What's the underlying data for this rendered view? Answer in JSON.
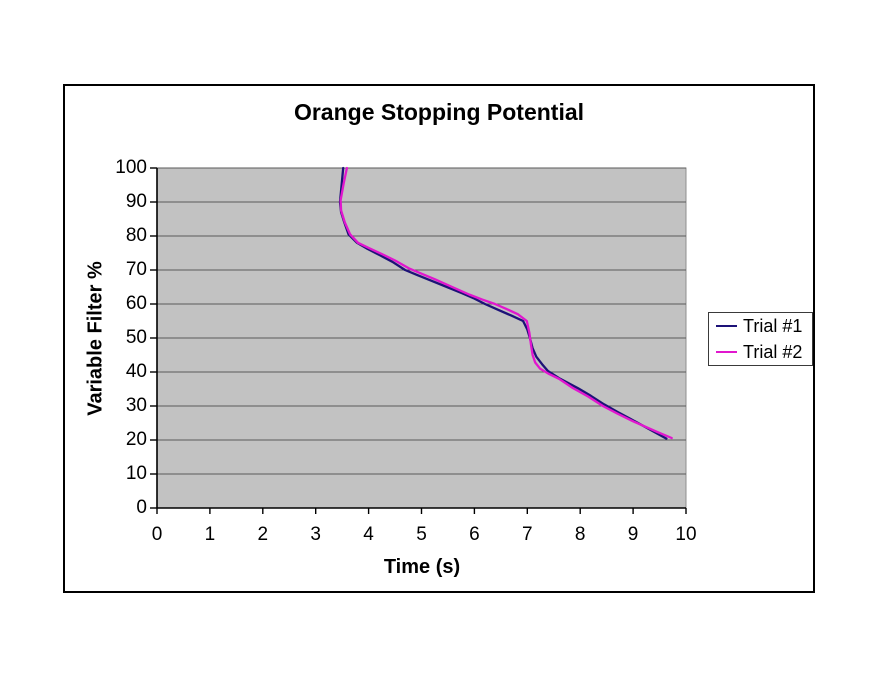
{
  "chart_data": {
    "type": "line",
    "title": "Orange Stopping Potential",
    "xlabel": "Time (s)",
    "ylabel": "Variable Filter %",
    "xlim": [
      0,
      10
    ],
    "ylim": [
      0,
      100
    ],
    "x_ticks": [
      0,
      1,
      2,
      3,
      4,
      5,
      6,
      7,
      8,
      9,
      10
    ],
    "y_ticks": [
      0,
      10,
      20,
      30,
      40,
      50,
      60,
      70,
      80,
      90,
      100
    ],
    "grid": "horizontal",
    "legend_position": "right-inside",
    "plot_bg_color": "#c2c2c2",
    "gridline_color": "#5a5a5a",
    "plot_border_color": "#8f8f8f",
    "axis_color": "#000000",
    "frame_border_color": "#000000",
    "series": [
      {
        "name": "Trial #1",
        "color": "#1d1278",
        "points": [
          [
            3.52,
            100
          ],
          [
            3.49,
            95
          ],
          [
            3.46,
            90
          ],
          [
            3.48,
            87
          ],
          [
            3.54,
            84
          ],
          [
            3.62,
            80.5
          ],
          [
            3.78,
            78
          ],
          [
            3.98,
            76.2
          ],
          [
            4.22,
            74.3
          ],
          [
            4.45,
            72.4
          ],
          [
            4.69,
            70
          ],
          [
            4.92,
            68.5
          ],
          [
            5.16,
            67
          ],
          [
            5.48,
            65
          ],
          [
            5.76,
            63.2
          ],
          [
            6.0,
            61.6
          ],
          [
            6.2,
            60
          ],
          [
            6.46,
            58.2
          ],
          [
            6.7,
            56.6
          ],
          [
            6.92,
            55
          ],
          [
            7.0,
            52.5
          ],
          [
            7.05,
            50
          ],
          [
            7.1,
            47
          ],
          [
            7.17,
            44.5
          ],
          [
            7.28,
            42.3
          ],
          [
            7.39,
            40.3
          ],
          [
            7.6,
            38.2
          ],
          [
            7.96,
            35.2
          ],
          [
            8.2,
            33
          ],
          [
            8.45,
            30.5
          ],
          [
            8.7,
            28.3
          ],
          [
            8.95,
            26.2
          ],
          [
            9.35,
            22.8
          ],
          [
            9.63,
            20.4
          ]
        ]
      },
      {
        "name": "Trial #2",
        "color": "#e117ce",
        "points": [
          [
            3.59,
            100
          ],
          [
            3.53,
            95.5
          ],
          [
            3.47,
            90.5
          ],
          [
            3.48,
            87.5
          ],
          [
            3.55,
            84
          ],
          [
            3.65,
            80.5
          ],
          [
            3.8,
            78
          ],
          [
            4.0,
            76.5
          ],
          [
            4.25,
            74.7
          ],
          [
            4.5,
            72.8
          ],
          [
            4.76,
            70.5
          ],
          [
            5.0,
            68.9
          ],
          [
            5.25,
            67.3
          ],
          [
            5.58,
            65
          ],
          [
            5.9,
            62.8
          ],
          [
            6.15,
            61.3
          ],
          [
            6.39,
            60
          ],
          [
            6.6,
            58.6
          ],
          [
            6.82,
            57
          ],
          [
            6.99,
            55
          ],
          [
            7.04,
            51.5
          ],
          [
            7.07,
            48
          ],
          [
            7.1,
            45
          ],
          [
            7.15,
            42.8
          ],
          [
            7.24,
            41
          ],
          [
            7.4,
            39.5
          ],
          [
            7.6,
            38
          ],
          [
            7.86,
            35.3
          ],
          [
            8.15,
            32.8
          ],
          [
            8.43,
            30
          ],
          [
            8.7,
            27.8
          ],
          [
            9.0,
            25.5
          ],
          [
            9.45,
            22.4
          ],
          [
            9.73,
            20.6
          ]
        ]
      }
    ]
  }
}
